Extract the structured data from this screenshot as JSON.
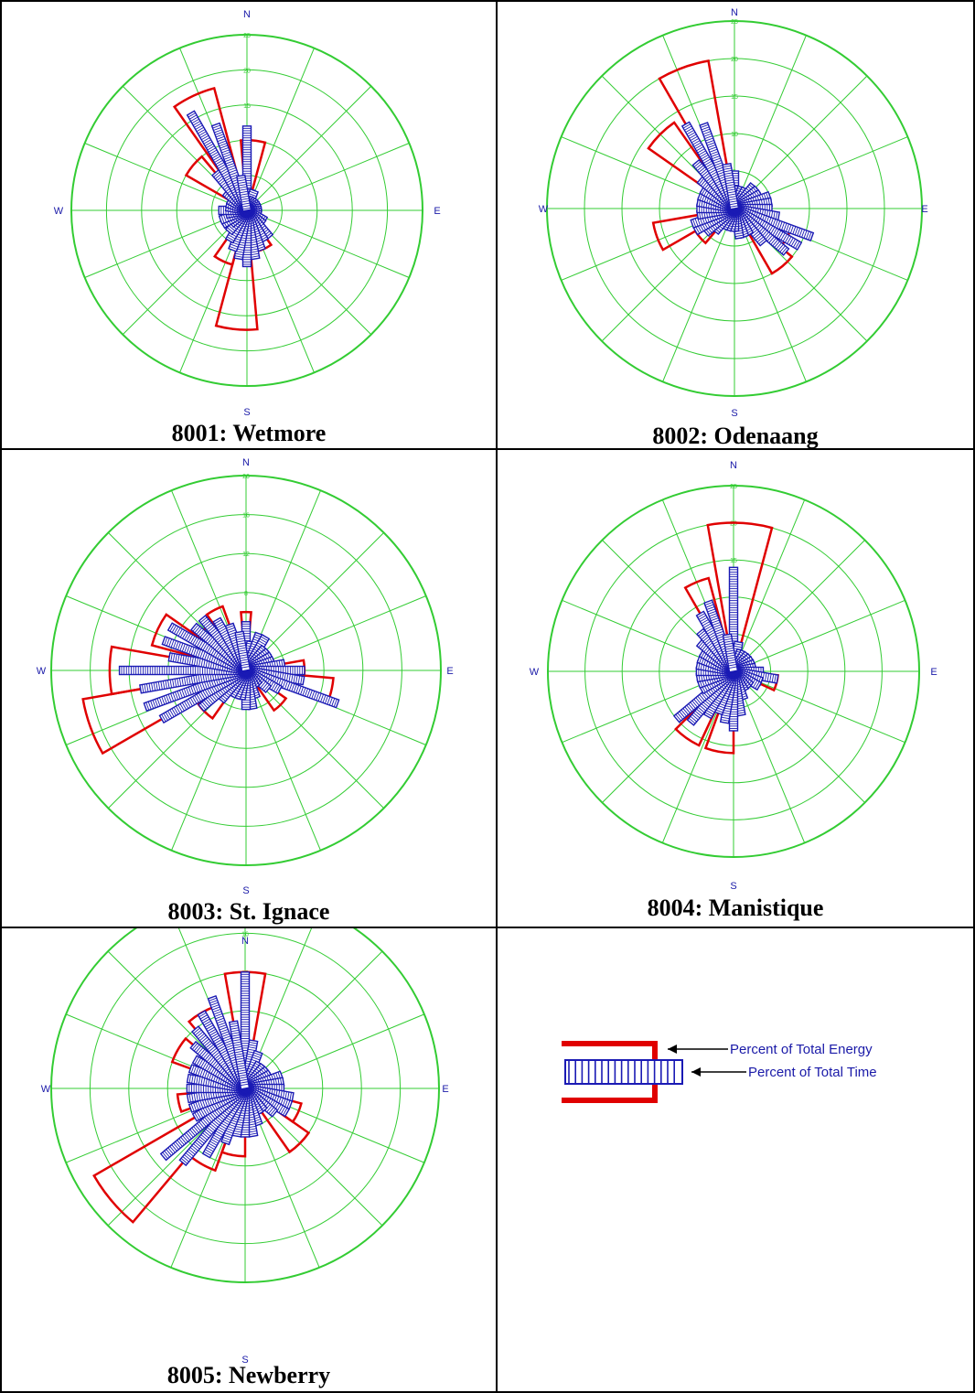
{
  "colors": {
    "grid": "#33cc33",
    "energy": "#e00000",
    "time": "#1a1ab4",
    "compass": "#1a1aa8",
    "border": "#000000"
  },
  "compass": {
    "n": "N",
    "e": "E",
    "s": "S",
    "w": "W"
  },
  "legend": {
    "energy_label": "Percent of Total Energy",
    "time_label": "Percent of Total Time"
  },
  "chart_data": [
    {
      "type": "polar-bar",
      "title": "8001: Wetmore",
      "rlim": [
        0,
        25
      ],
      "ring_ticks": [
        5,
        10,
        15,
        20,
        25
      ],
      "directions": [
        0,
        10,
        20,
        30,
        40,
        50,
        60,
        70,
        80,
        90,
        100,
        110,
        120,
        130,
        140,
        150,
        160,
        170,
        180,
        190,
        200,
        210,
        220,
        230,
        240,
        250,
        260,
        270,
        280,
        290,
        300,
        310,
        320,
        330,
        340,
        350
      ],
      "series": [
        {
          "name": "Percent of Total Energy",
          "sectors": [
            {
              "from": 355,
              "to": 15,
              "value": 10
            },
            {
              "from": 145,
              "to": 175,
              "value": 6
            },
            {
              "from": 175,
              "to": 195,
              "value": 17
            },
            {
              "from": 195,
              "to": 215,
              "value": 8
            },
            {
              "from": 300,
              "to": 320,
              "value": 10
            },
            {
              "from": 325,
              "to": 345,
              "value": 18
            }
          ]
        },
        {
          "name": "Percent of Total Time",
          "values": [
            12,
            3,
            3,
            2,
            2,
            2,
            2,
            2,
            2,
            2,
            2,
            2,
            3,
            3,
            5,
            5,
            6,
            7,
            8,
            7,
            6,
            5,
            4,
            3,
            4,
            4,
            3,
            4,
            3,
            3,
            3,
            4,
            7,
            16,
            13,
            5
          ]
        }
      ]
    },
    {
      "type": "polar-bar",
      "title": "8002: Odenaang",
      "rlim": [
        0,
        25
      ],
      "ring_ticks": [
        5,
        10,
        15,
        20,
        25
      ],
      "directions": [
        0,
        10,
        20,
        30,
        40,
        50,
        60,
        70,
        80,
        90,
        100,
        110,
        120,
        130,
        140,
        150,
        160,
        170,
        180,
        190,
        200,
        210,
        220,
        230,
        240,
        250,
        260,
        270,
        280,
        290,
        300,
        310,
        320,
        330,
        340,
        350
      ],
      "series": [
        {
          "name": "Percent of Total Energy",
          "sectors": [
            {
              "from": 110,
              "to": 130,
              "value": 8
            },
            {
              "from": 130,
              "to": 150,
              "value": 10
            },
            {
              "from": 220,
              "to": 240,
              "value": 6
            },
            {
              "from": 240,
              "to": 260,
              "value": 11
            },
            {
              "from": 305,
              "to": 325,
              "value": 14
            },
            {
              "from": 330,
              "to": 350,
              "value": 20
            }
          ]
        },
        {
          "name": "Percent of Total Time",
          "values": [
            5,
            3,
            3,
            3,
            4,
            4,
            4,
            5,
            5,
            5,
            6,
            11,
            10,
            9,
            6,
            4,
            4,
            4,
            3,
            3,
            3,
            3,
            4,
            5,
            6,
            6,
            5,
            5,
            5,
            5,
            5,
            6,
            8,
            13,
            12,
            6
          ]
        }
      ]
    },
    {
      "type": "polar-bar",
      "title": "8003: St. Ignace",
      "rlim": [
        0,
        20
      ],
      "ring_ticks": [
        4,
        8,
        12,
        16,
        20
      ],
      "directions": [
        0,
        10,
        20,
        30,
        40,
        50,
        60,
        70,
        80,
        90,
        100,
        110,
        120,
        130,
        140,
        150,
        160,
        170,
        180,
        190,
        200,
        210,
        220,
        230,
        240,
        250,
        260,
        270,
        280,
        290,
        300,
        310,
        320,
        330,
        340,
        350
      ],
      "series": [
        {
          "name": "Percent of Total Energy",
          "sectors": [
            {
              "from": 355,
              "to": 5,
              "value": 6
            },
            {
              "from": 80,
              "to": 95,
              "value": 6
            },
            {
              "from": 95,
              "to": 110,
              "value": 9
            },
            {
              "from": 125,
              "to": 145,
              "value": 5
            },
            {
              "from": 215,
              "to": 235,
              "value": 6
            },
            {
              "from": 240,
              "to": 260,
              "value": 17
            },
            {
              "from": 260,
              "to": 280,
              "value": 14
            },
            {
              "from": 285,
              "to": 305,
              "value": 10
            },
            {
              "from": 310,
              "to": 325,
              "value": 6
            },
            {
              "from": 325,
              "to": 340,
              "value": 7
            }
          ]
        },
        {
          "name": "Percent of Total Time",
          "values": [
            5,
            3,
            4,
            4,
            3,
            3,
            3,
            3,
            4,
            6,
            6,
            10,
            4,
            3,
            2,
            2,
            3,
            4,
            4,
            3,
            3,
            3,
            4,
            6,
            10,
            11,
            11,
            13,
            8,
            9,
            9,
            7,
            7,
            6,
            5,
            4
          ]
        }
      ]
    },
    {
      "type": "polar-bar",
      "title": "8004: Manistique",
      "rlim": [
        0,
        25
      ],
      "ring_ticks": [
        5,
        10,
        15,
        20,
        25
      ],
      "directions": [
        0,
        10,
        20,
        30,
        40,
        50,
        60,
        70,
        80,
        90,
        100,
        110,
        120,
        130,
        140,
        150,
        160,
        170,
        180,
        190,
        200,
        210,
        220,
        230,
        240,
        250,
        260,
        270,
        280,
        290,
        300,
        310,
        320,
        330,
        340,
        350
      ],
      "series": [
        {
          "name": "Percent of Total Energy",
          "sectors": [
            {
              "from": 350,
              "to": 15,
              "value": 20
            },
            {
              "from": 95,
              "to": 115,
              "value": 6
            },
            {
              "from": 180,
              "to": 200,
              "value": 11
            },
            {
              "from": 205,
              "to": 225,
              "value": 11
            },
            {
              "from": 330,
              "to": 345,
              "value": 13
            }
          ]
        },
        {
          "name": "Percent of Total Time",
          "values": [
            14,
            4,
            3,
            3,
            3,
            3,
            3,
            3,
            3,
            4,
            6,
            4,
            4,
            3,
            3,
            3,
            4,
            6,
            8,
            7,
            6,
            7,
            9,
            10,
            5,
            5,
            5,
            5,
            5,
            5,
            5,
            6,
            7,
            9,
            10,
            5
          ]
        }
      ]
    },
    {
      "type": "polar-bar",
      "title": "8005: Newberry",
      "rlim": [
        0,
        20
      ],
      "ring_ticks": [
        4,
        8,
        12,
        16,
        20
      ],
      "directions": [
        0,
        10,
        20,
        30,
        40,
        50,
        60,
        70,
        80,
        90,
        100,
        110,
        120,
        130,
        140,
        150,
        160,
        170,
        180,
        190,
        200,
        210,
        220,
        230,
        240,
        250,
        260,
        270,
        280,
        290,
        300,
        310,
        320,
        330,
        340,
        350
      ],
      "series": [
        {
          "name": "Percent of Total Energy",
          "sectors": [
            {
              "from": 350,
              "to": 10,
              "value": 12
            },
            {
              "from": 105,
              "to": 125,
              "value": 6
            },
            {
              "from": 125,
              "to": 145,
              "value": 8
            },
            {
              "from": 180,
              "to": 200,
              "value": 7
            },
            {
              "from": 200,
              "to": 220,
              "value": 9
            },
            {
              "from": 220,
              "to": 240,
              "value": 18
            },
            {
              "from": 250,
              "to": 265,
              "value": 7
            },
            {
              "from": 290,
              "to": 310,
              "value": 8
            },
            {
              "from": 320,
              "to": 340,
              "value": 9
            }
          ]
        },
        {
          "name": "Percent of Total Time",
          "values": [
            12,
            5,
            4,
            3,
            3,
            3,
            3,
            4,
            4,
            4,
            5,
            5,
            5,
            4,
            3,
            3,
            4,
            5,
            5,
            5,
            6,
            8,
            10,
            11,
            6,
            6,
            6,
            6,
            6,
            6,
            6,
            7,
            8,
            9,
            10,
            7
          ]
        }
      ]
    }
  ]
}
